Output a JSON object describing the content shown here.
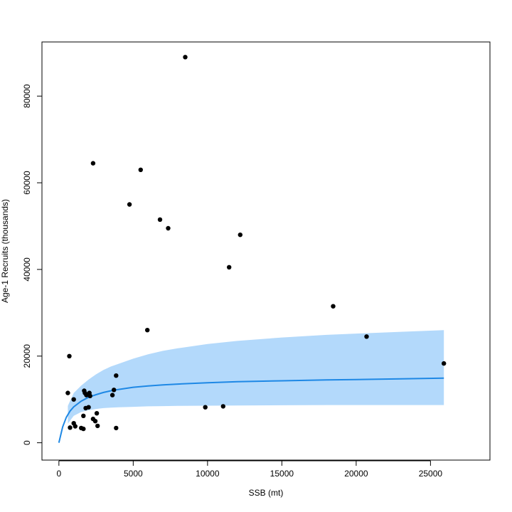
{
  "chart_data": {
    "type": "scatter",
    "title": "",
    "xlabel": "SSB (mt)",
    "ylabel": "Age-1 Recruits (thousands)",
    "xlim": [
      -1140,
      29000
    ],
    "ylim": [
      -4000,
      92500
    ],
    "x_ticks": [
      0,
      5000,
      10000,
      15000,
      20000,
      25000
    ],
    "x_tick_labels": [
      "0",
      "5000",
      "10000",
      "15000",
      "20000",
      "25000"
    ],
    "y_ticks": [
      0,
      20000,
      40000,
      60000,
      80000
    ],
    "y_tick_labels": [
      "0",
      "20000",
      "40000",
      "60000",
      "80000"
    ],
    "grid": false,
    "legend": "none",
    "colors": {
      "points": "#000000",
      "fit_line": "#1e88e5",
      "confidence_band": "#b3d9fb",
      "frame": "#000000"
    },
    "points": {
      "x": [
        8500,
        2300,
        5500,
        4750,
        6800,
        7350,
        12200,
        11450,
        18450,
        20700,
        5950,
        700,
        3850,
        25900,
        3700,
        600,
        1000,
        1700,
        1750,
        2050,
        1850,
        2100,
        3600,
        2000,
        1800,
        2550,
        1650,
        2300,
        2450,
        1000,
        1100,
        2600,
        750,
        1500,
        1650,
        3850,
        9850,
        11050
      ],
      "y": [
        89000,
        64500,
        63000,
        55000,
        51500,
        49500,
        48000,
        40500,
        31500,
        24500,
        26000,
        20000,
        15500,
        18300,
        12200,
        11500,
        10000,
        12000,
        11500,
        11500,
        11000,
        10800,
        11000,
        8200,
        8000,
        6800,
        6200,
        5500,
        5000,
        4500,
        3800,
        3900,
        3500,
        3400,
        3200,
        3400,
        8200,
        8400
      ]
    },
    "fit": {
      "name": "",
      "x": [
        0,
        250,
        500,
        750,
        1000,
        1500,
        2000,
        2500,
        3000,
        3500,
        4000,
        5000,
        6000,
        7000,
        8000,
        10000,
        12000,
        15000,
        18000,
        20000,
        23000,
        25900
      ],
      "y": [
        0,
        3650,
        5900,
        7300,
        8300,
        9600,
        10500,
        11100,
        11600,
        12000,
        12300,
        12800,
        13100,
        13350,
        13550,
        13850,
        14100,
        14300,
        14500,
        14600,
        14750,
        14900
      ]
    },
    "band": {
      "x": [
        600,
        1000,
        1500,
        2000,
        2500,
        3000,
        3500,
        4000,
        5000,
        6000,
        7000,
        8000,
        10000,
        12000,
        15000,
        18000,
        20000,
        23000,
        25900
      ],
      "lower": [
        4400,
        6200,
        7100,
        7500,
        7800,
        8000,
        8100,
        8200,
        8300,
        8400,
        8450,
        8500,
        8550,
        8600,
        8650,
        8700,
        8700,
        8700,
        8700
      ],
      "upper": [
        8500,
        11500,
        13200,
        14600,
        15800,
        16800,
        17600,
        18200,
        19400,
        20400,
        21200,
        21800,
        22800,
        23500,
        24300,
        24900,
        25200,
        25600,
        26000
      ]
    }
  }
}
